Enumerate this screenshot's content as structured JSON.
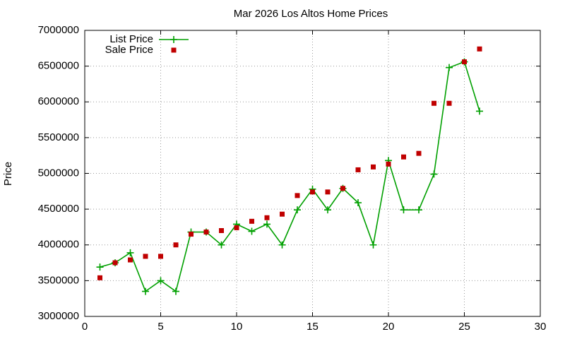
{
  "chart_data": {
    "type": "line",
    "title": "Mar 2026 Los Altos Home Prices",
    "y_label": "Price",
    "x": [
      1,
      2,
      3,
      4,
      5,
      6,
      7,
      8,
      9,
      10,
      11,
      12,
      13,
      14,
      15,
      16,
      17,
      18,
      19,
      20,
      21,
      22,
      23,
      24,
      25,
      26
    ],
    "series": [
      {
        "name": "List Price",
        "color": "#00a000",
        "style": "linespoints",
        "marker": "plus",
        "values": [
          3690000,
          3750000,
          3890000,
          3350000,
          3500000,
          3350000,
          4180000,
          4180000,
          4000000,
          4290000,
          4190000,
          4290000,
          4000000,
          4490000,
          4780000,
          4490000,
          4790000,
          4590000,
          4000000,
          5180000,
          4490000,
          4490000,
          4990000,
          6480000,
          6560000,
          5870000
        ]
      },
      {
        "name": "Sale Price",
        "color": "#c00000",
        "style": "points",
        "marker": "square",
        "values": [
          3540000,
          3750000,
          3790000,
          3840000,
          3840000,
          4000000,
          4150000,
          4180000,
          4200000,
          4240000,
          4330000,
          4380000,
          4430000,
          4690000,
          4740000,
          4740000,
          4790000,
          5050000,
          5090000,
          5130000,
          5230000,
          5280000,
          5980000,
          5980000,
          6560000,
          6740000
        ]
      }
    ],
    "xlim": [
      0,
      30
    ],
    "xticks": [
      0,
      5,
      10,
      15,
      20,
      25,
      30
    ],
    "ylim": [
      3000000,
      7000000
    ],
    "yticks": [
      3000000,
      3500000,
      4000000,
      4500000,
      5000000,
      5500000,
      6000000,
      6500000,
      7000000
    ],
    "grid": true,
    "legend": "top-left"
  }
}
